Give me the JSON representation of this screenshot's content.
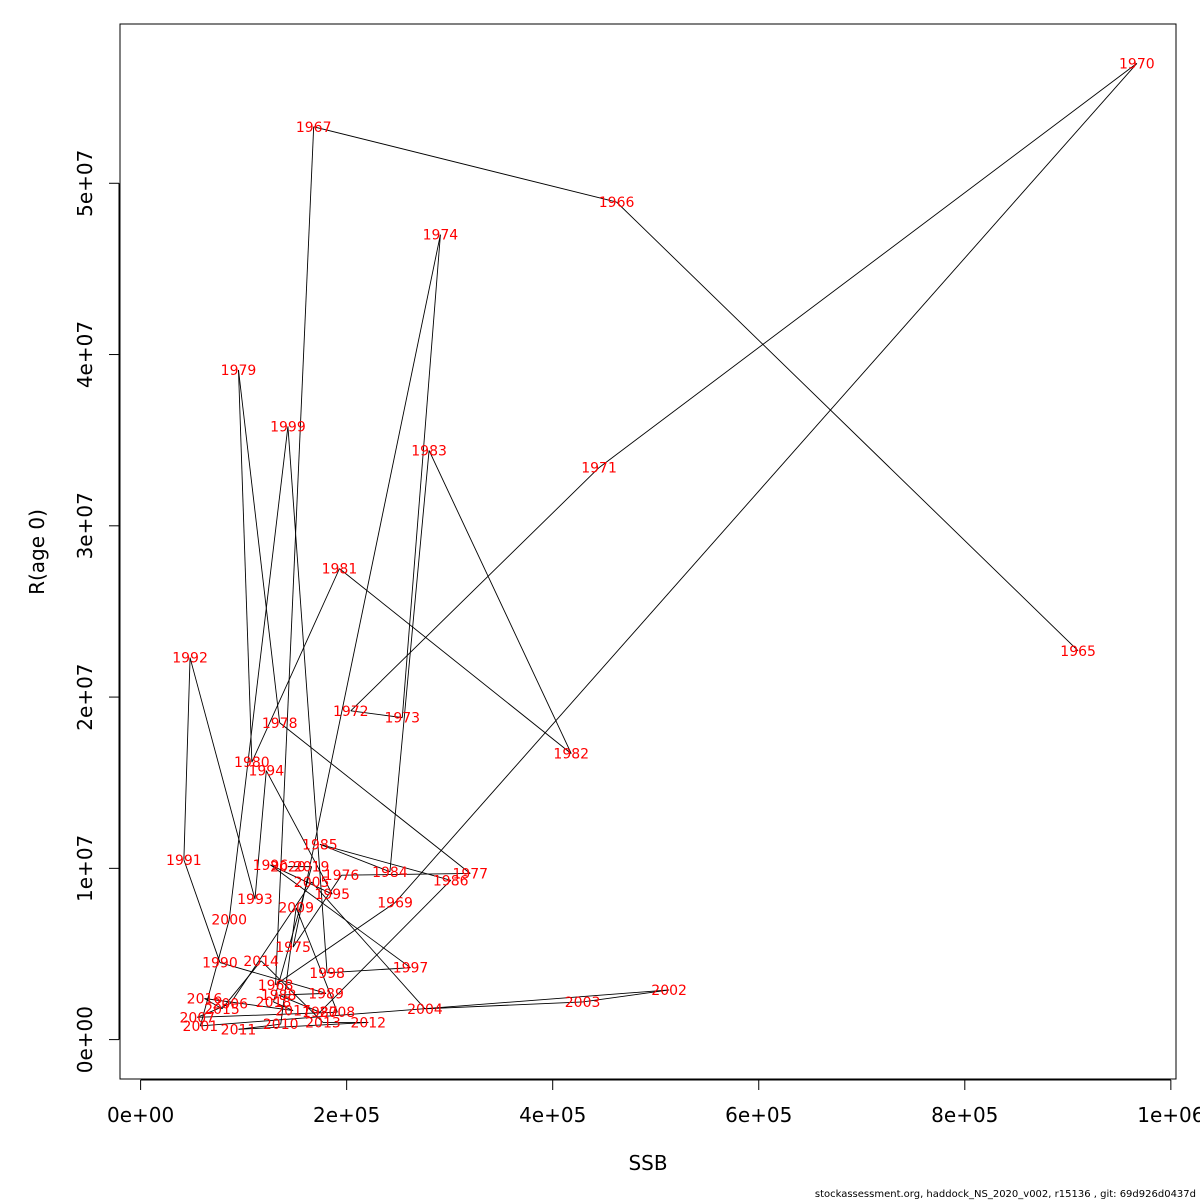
{
  "chart_data": {
    "type": "line",
    "xlabel": "SSB",
    "ylabel": "R(age 0)",
    "xlim": [
      -20000,
      1005000
    ],
    "ylim": [
      -2300000,
      59300000
    ],
    "x_ticks": [
      {
        "value": 0,
        "label": "0e+00"
      },
      {
        "value": 200000,
        "label": "2e+05"
      },
      {
        "value": 400000,
        "label": "4e+05"
      },
      {
        "value": 600000,
        "label": "6e+05"
      },
      {
        "value": 800000,
        "label": "8e+05"
      },
      {
        "value": 1000000,
        "label": "1e+06"
      }
    ],
    "y_ticks": [
      {
        "value": 0,
        "label": "0e+00"
      },
      {
        "value": 10000000,
        "label": "1e+07"
      },
      {
        "value": 20000000,
        "label": "2e+07"
      },
      {
        "value": 30000000,
        "label": "3e+07"
      },
      {
        "value": 40000000,
        "label": "4e+07"
      },
      {
        "value": 50000000,
        "label": "5e+07"
      }
    ],
    "line_color": "#000000",
    "label_color": "#ff0000",
    "points": [
      {
        "label": "1965",
        "x": 910000,
        "y": 22700000
      },
      {
        "label": "1966",
        "x": 462000,
        "y": 48900000
      },
      {
        "label": "1967",
        "x": 168000,
        "y": 53300000
      },
      {
        "label": "1968",
        "x": 131000,
        "y": 3200000
      },
      {
        "label": "1969",
        "x": 247000,
        "y": 8000000
      },
      {
        "label": "1970",
        "x": 967000,
        "y": 57000000
      },
      {
        "label": "1971",
        "x": 445000,
        "y": 33400000
      },
      {
        "label": "1972",
        "x": 204000,
        "y": 19200000
      },
      {
        "label": "1973",
        "x": 254000,
        "y": 18800000
      },
      {
        "label": "1974",
        "x": 291000,
        "y": 47000000
      },
      {
        "label": "1975",
        "x": 148000,
        "y": 5400000
      },
      {
        "label": "1976",
        "x": 195000,
        "y": 9600000
      },
      {
        "label": "1977",
        "x": 320000,
        "y": 9700000
      },
      {
        "label": "1978",
        "x": 135000,
        "y": 18500000
      },
      {
        "label": "1979",
        "x": 95000,
        "y": 39100000
      },
      {
        "label": "1980",
        "x": 108000,
        "y": 16200000
      },
      {
        "label": "1981",
        "x": 193000,
        "y": 27500000
      },
      {
        "label": "1982",
        "x": 418000,
        "y": 16700000
      },
      {
        "label": "1983",
        "x": 280000,
        "y": 34400000
      },
      {
        "label": "1984",
        "x": 242000,
        "y": 9800000
      },
      {
        "label": "1985",
        "x": 174000,
        "y": 11400000
      },
      {
        "label": "1986",
        "x": 301000,
        "y": 9300000
      },
      {
        "label": "1987",
        "x": 174000,
        "y": 1600000
      },
      {
        "label": "1988",
        "x": 134000,
        "y": 2600000
      },
      {
        "label": "1989",
        "x": 180000,
        "y": 2700000
      },
      {
        "label": "1990",
        "x": 77000,
        "y": 4500000
      },
      {
        "label": "1991",
        "x": 42000,
        "y": 10500000
      },
      {
        "label": "1992",
        "x": 48000,
        "y": 22300000
      },
      {
        "label": "1993",
        "x": 111000,
        "y": 8200000
      },
      {
        "label": "1994",
        "x": 122000,
        "y": 15700000
      },
      {
        "label": "1995",
        "x": 186000,
        "y": 8500000
      },
      {
        "label": "1996",
        "x": 126000,
        "y": 10200000
      },
      {
        "label": "1997",
        "x": 262000,
        "y": 4200000
      },
      {
        "label": "1998",
        "x": 181000,
        "y": 3900000
      },
      {
        "label": "1999",
        "x": 143000,
        "y": 35800000
      },
      {
        "label": "2000",
        "x": 86000,
        "y": 7000000
      },
      {
        "label": "2001",
        "x": 58000,
        "y": 800000
      },
      {
        "label": "2002",
        "x": 513000,
        "y": 2900000
      },
      {
        "label": "2003",
        "x": 429000,
        "y": 2200000
      },
      {
        "label": "2004",
        "x": 276000,
        "y": 1800000
      },
      {
        "label": "2005",
        "x": 166000,
        "y": 9200000
      },
      {
        "label": "2006",
        "x": 87000,
        "y": 2100000
      },
      {
        "label": "2007",
        "x": 55000,
        "y": 1300000
      },
      {
        "label": "2008",
        "x": 191000,
        "y": 1600000
      },
      {
        "label": "2009",
        "x": 151000,
        "y": 7700000
      },
      {
        "label": "2010",
        "x": 136000,
        "y": 900000
      },
      {
        "label": "2011",
        "x": 95000,
        "y": 600000
      },
      {
        "label": "2012",
        "x": 221000,
        "y": 1000000
      },
      {
        "label": "2013",
        "x": 177000,
        "y": 1000000
      },
      {
        "label": "2014",
        "x": 117000,
        "y": 4600000
      },
      {
        "label": "2015",
        "x": 79000,
        "y": 1800000
      },
      {
        "label": "2016",
        "x": 62000,
        "y": 2400000
      },
      {
        "label": "2017",
        "x": 148000,
        "y": 1700000
      },
      {
        "label": "2018",
        "x": 129000,
        "y": 2200000
      },
      {
        "label": "2019",
        "x": 166000,
        "y": 10100000
      },
      {
        "label": "2020",
        "x": 143000,
        "y": 10100000
      }
    ]
  },
  "footer_text": "stockassessment.org, haddock_NS_2020_v002, r15136 , git: 69d926d0437d"
}
